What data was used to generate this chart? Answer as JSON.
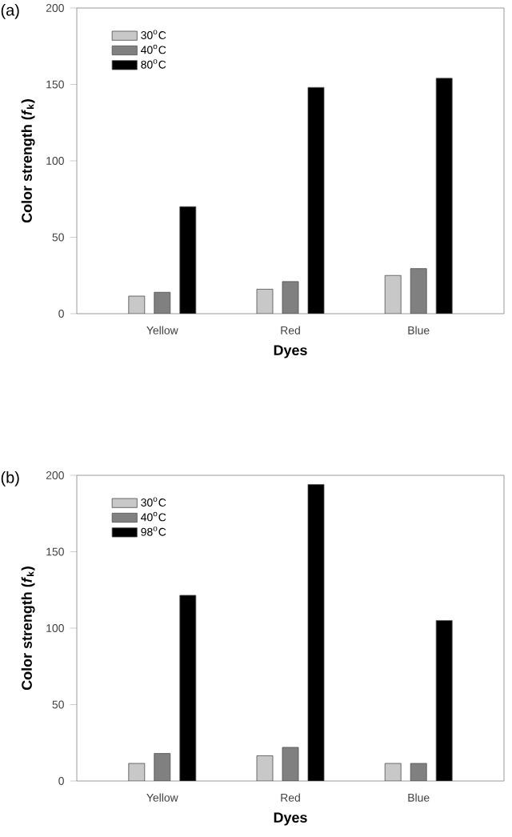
{
  "chart_data": [
    {
      "type": "bar",
      "title": "(a)",
      "xlabel": "Dyes",
      "ylabel": "Color strength (*f*$_{k}$)",
      "categories": [
        "Yellow",
        "Red",
        "Blue"
      ],
      "ylim": [
        0,
        200
      ],
      "yticks": [
        0,
        50,
        100,
        150,
        200
      ],
      "legend": "top left",
      "series": [
        {
          "name": "30$^{o}$C",
          "color": "#c8c8c8",
          "values": [
            11.5,
            16,
            25
          ]
        },
        {
          "name": "40$^{o}$C",
          "color": "#808080",
          "values": [
            14,
            21,
            29.5
          ]
        },
        {
          "name": "80$^{o}$C",
          "color": "#000000",
          "values": [
            70,
            148,
            154
          ]
        }
      ]
    },
    {
      "type": "bar",
      "title": "(b)",
      "xlabel": "Dyes",
      "ylabel": "Color strength (*f*$_{k}$)",
      "categories": [
        "Yellow",
        "Red",
        "Blue"
      ],
      "ylim": [
        0,
        200
      ],
      "yticks": [
        0,
        50,
        100,
        150,
        200
      ],
      "legend": "top left",
      "series": [
        {
          "name": "30$^{o}$C",
          "color": "#c8c8c8",
          "values": [
            11.5,
            16.5,
            11.5
          ]
        },
        {
          "name": "40$^{o}$C",
          "color": "#808080",
          "values": [
            18,
            22,
            11.5
          ]
        },
        {
          "name": "98$^{o}$C",
          "color": "#000000",
          "values": [
            121.5,
            194,
            105
          ]
        }
      ]
    }
  ]
}
